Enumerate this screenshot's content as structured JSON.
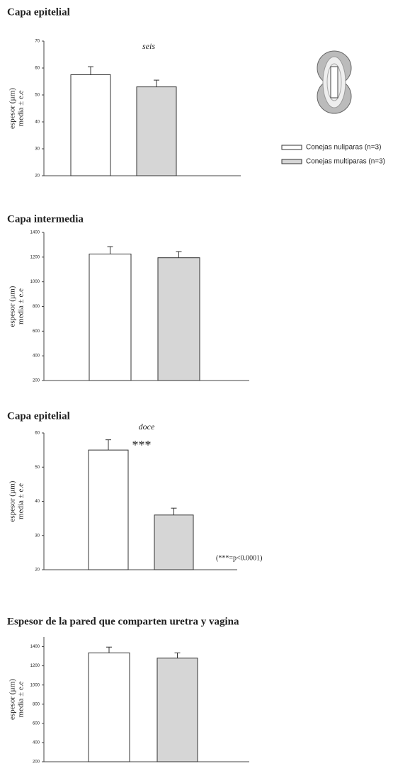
{
  "chart_data": [
    {
      "type": "bar",
      "title": "Capa epitelial",
      "subtitle": "seis",
      "ylabel": [
        "espesor (µm)",
        "media ± e.e"
      ],
      "ylim": [
        20,
        70
      ],
      "yticks": [
        20,
        30,
        40,
        50,
        60,
        70
      ],
      "series": [
        {
          "name": "Conejas nuliparas (n=3)",
          "color": "#ffffff",
          "values": [
            57.5
          ],
          "errors": [
            3
          ]
        },
        {
          "name": "Conejas multiparas (n=3)",
          "color": "#d6d6d6",
          "values": [
            53
          ],
          "errors": [
            2.5
          ]
        }
      ]
    },
    {
      "type": "bar",
      "title": "Capa intermedia",
      "ylabel": [
        "espesor (µm)",
        "media ± e.e"
      ],
      "ylim": [
        200,
        1400
      ],
      "yticks": [
        200,
        400,
        600,
        800,
        1000,
        1200,
        1400
      ],
      "series": [
        {
          "color": "#ffffff",
          "values": [
            1225
          ],
          "errors": [
            60
          ]
        },
        {
          "color": "#d6d6d6",
          "values": [
            1195
          ],
          "errors": [
            50
          ]
        }
      ]
    },
    {
      "type": "bar",
      "title": "Capa epitelial",
      "subtitle": "doce",
      "ylabel": [
        "espesor (µm)",
        "media ± e.e"
      ],
      "ylim": [
        20,
        60
      ],
      "yticks": [
        20,
        30,
        40,
        50,
        60
      ],
      "annotations": [
        "***",
        "(***=p<0.0001)"
      ],
      "series": [
        {
          "color": "#ffffff",
          "values": [
            55
          ],
          "errors": [
            3
          ]
        },
        {
          "color": "#d6d6d6",
          "values": [
            36
          ],
          "errors": [
            2
          ]
        }
      ]
    },
    {
      "type": "bar",
      "title": "Espesor de la pared que comparten uretra y vagina",
      "ylabel": [
        "espesor (µm)",
        "media ± e.e"
      ],
      "ylim": [
        200,
        1500
      ],
      "yticks": [
        200,
        400,
        600,
        800,
        1000,
        1200,
        1400
      ],
      "series": [
        {
          "color": "#ffffff",
          "values": [
            1335
          ],
          "errors": [
            60
          ]
        },
        {
          "color": "#d6d6d6",
          "values": [
            1280
          ],
          "errors": [
            55
          ]
        }
      ]
    }
  ]
}
